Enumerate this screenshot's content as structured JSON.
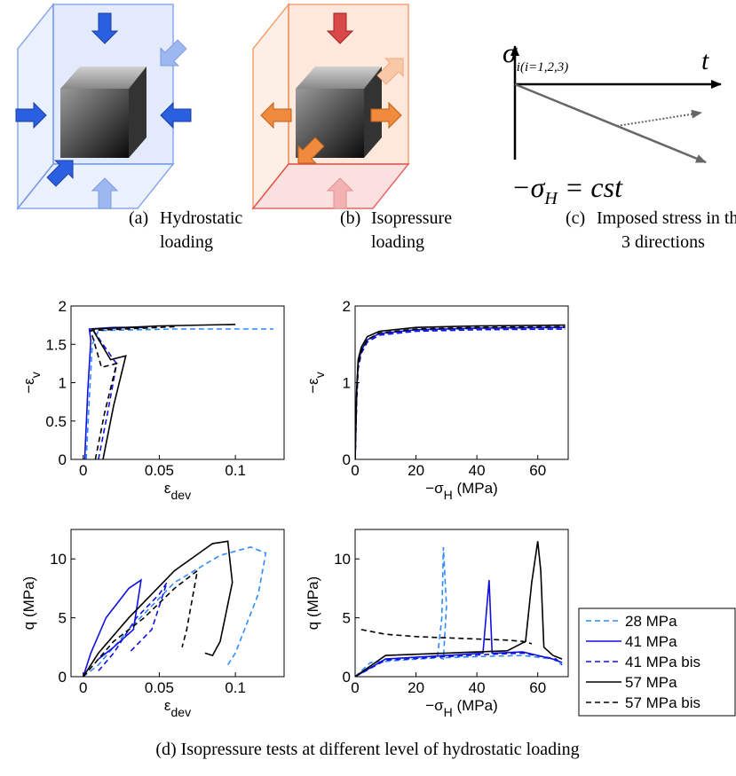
{
  "figure": {
    "panels": [
      {
        "label": "(a)",
        "lines": [
          "Hydrostatic",
          "loading"
        ]
      },
      {
        "label": "(b)",
        "lines": [
          "Isopressure",
          "loading"
        ]
      },
      {
        "label": "(c)",
        "lines": [
          "Imposed stress in the",
          "3 directions"
        ]
      }
    ],
    "diagram_c": {
      "sigma": "σ",
      "sigma_sub": "i(i=1,2,3)",
      "t": "t",
      "equation": "−σ",
      "equation_sub": "H",
      "equation_rest": " = cst"
    },
    "caption": "(d) Isopressure tests at different level of hydrostatic loading"
  },
  "chart_data": [
    {
      "type": "line",
      "xlabel": [
        {
          "text": "ε"
        },
        {
          "text": "dev",
          "sub": true
        }
      ],
      "ylabel": [
        {
          "text": "−ε"
        },
        {
          "text": "v",
          "sub": true
        }
      ],
      "xlim": [
        -0.008,
        0.132
      ],
      "xticks": [
        0,
        0.05,
        0.1
      ],
      "ylim": [
        0,
        2
      ],
      "yticks": [
        0,
        0.5,
        1,
        1.5,
        2
      ],
      "series": [
        {
          "color": "#2e8bff",
          "dash": true,
          "x": [
            0.002,
            0.004,
            0.006,
            0.01,
            0.06,
            0.125
          ],
          "values": [
            0,
            0.8,
            1.5,
            1.68,
            1.7,
            1.7
          ]
        },
        {
          "color": "#1010e0",
          "dash": false,
          "x": [
            0.001,
            0.003,
            0.005,
            0.004,
            0.02,
            0.04
          ],
          "values": [
            0,
            0.9,
            1.55,
            1.7,
            1.72,
            1.72
          ]
        },
        {
          "color": "#1010e0",
          "dash": true,
          "x": [
            0.01,
            0.016,
            0.022,
            0.02,
            0.006,
            0.03
          ],
          "values": [
            0,
            0.6,
            1.25,
            1.3,
            1.7,
            1.72
          ]
        },
        {
          "color": "#000000",
          "dash": false,
          "x": [
            0.013,
            0.02,
            0.028,
            0.018,
            0.006,
            0.05,
            0.1
          ],
          "values": [
            0,
            0.7,
            1.35,
            1.3,
            1.7,
            1.74,
            1.76
          ]
        },
        {
          "color": "#000000",
          "dash": true,
          "x": [
            0.008,
            0.014,
            0.022,
            0.012,
            0.005,
            0.06
          ],
          "values": [
            0,
            0.6,
            1.25,
            1.2,
            1.68,
            1.73
          ]
        }
      ]
    },
    {
      "type": "line",
      "xlabel": [
        {
          "text": "−σ"
        },
        {
          "text": "H",
          "sub": true
        },
        {
          "text": " (MPa)"
        }
      ],
      "ylabel": [
        {
          "text": "−ε"
        },
        {
          "text": "v",
          "sub": true
        }
      ],
      "xlim": [
        0,
        70
      ],
      "xticks": [
        0,
        20,
        40,
        60
      ],
      "ylim": [
        0,
        2
      ],
      "yticks": [
        0,
        1,
        2
      ],
      "series": [
        {
          "color": "#2e8bff",
          "dash": true,
          "x": [
            0,
            0.5,
            1,
            2,
            4,
            8,
            20,
            40,
            69
          ],
          "values": [
            0,
            0.8,
            1.2,
            1.4,
            1.55,
            1.63,
            1.68,
            1.7,
            1.7
          ]
        },
        {
          "color": "#1010e0",
          "dash": false,
          "x": [
            0,
            0.5,
            1,
            2,
            4,
            8,
            20,
            40,
            69
          ],
          "values": [
            0,
            0.85,
            1.25,
            1.42,
            1.56,
            1.64,
            1.69,
            1.71,
            1.72
          ]
        },
        {
          "color": "#1010e0",
          "dash": true,
          "x": [
            0,
            0.5,
            1,
            2,
            4,
            8,
            20,
            40,
            69
          ],
          "values": [
            0,
            0.75,
            1.18,
            1.38,
            1.53,
            1.62,
            1.67,
            1.69,
            1.7
          ]
        },
        {
          "color": "#000000",
          "dash": false,
          "x": [
            0,
            0.5,
            1,
            2,
            4,
            8,
            20,
            40,
            69
          ],
          "values": [
            0,
            0.9,
            1.3,
            1.46,
            1.6,
            1.67,
            1.72,
            1.74,
            1.75
          ]
        },
        {
          "color": "#000000",
          "dash": true,
          "x": [
            0,
            0.5,
            1,
            2,
            4,
            8,
            20,
            40,
            69
          ],
          "values": [
            0,
            0.82,
            1.22,
            1.41,
            1.56,
            1.65,
            1.7,
            1.72,
            1.73
          ]
        }
      ]
    },
    {
      "type": "line",
      "xlabel": [
        {
          "text": "ε"
        },
        {
          "text": "dev",
          "sub": true
        }
      ],
      "ylabel": [
        {
          "text": "q (MPa)"
        }
      ],
      "xlim": [
        -0.008,
        0.132
      ],
      "xticks": [
        0,
        0.05,
        0.1
      ],
      "ylim": [
        0,
        12.5
      ],
      "yticks": [
        0,
        5,
        10
      ],
      "series": [
        {
          "color": "#2e8bff",
          "dash": true,
          "x": [
            0,
            0.01,
            0.03,
            0.06,
            0.09,
            0.11,
            0.12,
            0.115,
            0.1,
            0.095
          ],
          "values": [
            0,
            1,
            4,
            8,
            10.3,
            11,
            10.5,
            7,
            2,
            1
          ]
        },
        {
          "color": "#1010e0",
          "dash": false,
          "x": [
            0,
            0.005,
            0.015,
            0.03,
            0.038,
            0.033,
            0.02,
            0.01
          ],
          "values": [
            0,
            2,
            5,
            7.5,
            8.2,
            4,
            2.5,
            1.5
          ]
        },
        {
          "color": "#1010e0",
          "dash": true,
          "x": [
            0.01,
            0.02,
            0.035,
            0.05,
            0.055,
            0.045,
            0.03
          ],
          "values": [
            0.5,
            2,
            5,
            7,
            8,
            4,
            2
          ]
        },
        {
          "color": "#000000",
          "dash": false,
          "x": [
            0,
            0.01,
            0.03,
            0.06,
            0.085,
            0.095,
            0.098,
            0.09,
            0.085,
            0.08
          ],
          "values": [
            0,
            2,
            5,
            9,
            11.3,
            11.5,
            8,
            3,
            1.8,
            2
          ]
        },
        {
          "color": "#000000",
          "dash": true,
          "x": [
            0,
            0.01,
            0.02,
            0.04,
            0.06,
            0.075,
            0.068,
            0.065
          ],
          "values": [
            0,
            1.5,
            3,
            5,
            7.5,
            9,
            4,
            2.5
          ]
        }
      ]
    },
    {
      "type": "line",
      "xlabel": [
        {
          "text": "−σ"
        },
        {
          "text": "H",
          "sub": true
        },
        {
          "text": " (MPa)"
        }
      ],
      "ylabel": [
        {
          "text": "q (MPa)"
        }
      ],
      "xlim": [
        0,
        70
      ],
      "xticks": [
        0,
        20,
        40,
        60
      ],
      "ylim": [
        0,
        12.5
      ],
      "yticks": [
        0,
        5,
        10
      ],
      "legend": "outside right",
      "series": [
        {
          "name": "28 MPa",
          "color": "#2e8bff",
          "dash": true,
          "x": [
            0,
            5,
            15,
            27,
            28.5,
            29,
            30,
            29,
            28,
            40,
            55,
            65,
            68
          ],
          "values": [
            0,
            1.2,
            1.4,
            1.6,
            5,
            11,
            6,
            1.5,
            1.6,
            1.7,
            1.8,
            1.5,
            1
          ]
        },
        {
          "name": "41 MPa",
          "color": "#1010e0",
          "dash": false,
          "x": [
            0,
            10,
            30,
            42,
            44,
            45,
            46,
            55,
            65,
            68
          ],
          "values": [
            0,
            1.5,
            1.8,
            2,
            8.2,
            2,
            2,
            2.1,
            1.5,
            1.2
          ]
        },
        {
          "name": "41 MPa bis",
          "color": "#1010e0",
          "dash": true,
          "x": [
            0,
            10,
            30,
            44,
            55,
            66,
            68
          ],
          "values": [
            0,
            1.4,
            1.7,
            1.9,
            2,
            1.5,
            1
          ]
        },
        {
          "name": "57 MPa",
          "color": "#000000",
          "dash": false,
          "x": [
            0,
            10,
            30,
            50,
            56,
            58,
            60,
            61,
            62,
            65,
            68
          ],
          "values": [
            0,
            1.8,
            2,
            2.2,
            3,
            8,
            11.5,
            9,
            2.5,
            1.8,
            1.5
          ]
        },
        {
          "name": "57 MPa bis",
          "color": "#000000",
          "dash": true,
          "x": [
            2,
            10,
            20,
            30,
            40,
            50,
            55,
            58
          ],
          "values": [
            4,
            3.6,
            3.4,
            3.3,
            3.2,
            3.1,
            3,
            2.8
          ]
        }
      ]
    }
  ]
}
